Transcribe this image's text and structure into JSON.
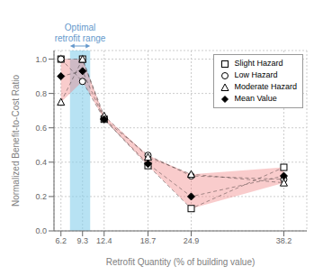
{
  "chart_data": {
    "type": "line",
    "xlabel": "Retrofit Quantity (% of building value)",
    "ylabel": "Normalized Benefit-to-Cost Ratio",
    "x": [
      6.2,
      9.3,
      12.4,
      18.7,
      24.9,
      38.2
    ],
    "series": [
      {
        "name": "Slight Hazard",
        "color": "#000000",
        "marker": "open_square",
        "line_style": "dashed",
        "values": [
          1.0,
          1.0,
          0.65,
          0.38,
          0.13,
          0.37
        ]
      },
      {
        "name": "Low Hazard",
        "color": "#000000",
        "marker": "open_circle",
        "line_style": "dashed",
        "values": [
          1.0,
          0.87,
          0.65,
          0.44,
          0.32,
          0.3
        ]
      },
      {
        "name": "Moderate Hazard",
        "color": "#000000",
        "marker": "open_triangle",
        "line_style": "dashed",
        "values": [
          0.75,
          1.0,
          0.67,
          0.43,
          0.33,
          0.28
        ]
      },
      {
        "name": "Mean Value",
        "color": "#000000",
        "marker": "filled_diamond",
        "line_style": "dashed",
        "values": [
          0.9,
          0.93,
          0.65,
          0.39,
          0.2,
          0.32
        ]
      }
    ],
    "envelope": {
      "lower": [
        0.75,
        0.87,
        0.65,
        0.38,
        0.13,
        0.28
      ],
      "upper": [
        1.0,
        1.0,
        0.67,
        0.44,
        0.33,
        0.37
      ],
      "color": "#f08080"
    },
    "spans": [
      {
        "x": [
          7.5,
          10.4
        ],
        "color": "#87CEEB"
      }
    ],
    "annotations": [
      {
        "lines": [
          "Optimal",
          "retrofit range"
        ],
        "x": [
          7.5,
          10.4
        ],
        "color": "#6699cc"
      }
    ],
    "xlim": [
      5.2,
      41.5
    ],
    "xticks": [
      6.2,
      9.3,
      12.4,
      18.7,
      24.9,
      38.2
    ],
    "ylim": [
      0.0,
      1.05
    ],
    "yticks": [
      {
        "value": 0.0,
        "label": "0.0"
      },
      0.2,
      0.4,
      0.6,
      0.8,
      {
        "value": 1.0,
        "label": "1.0"
      }
    ],
    "grid": true,
    "legend": "upper right"
  }
}
